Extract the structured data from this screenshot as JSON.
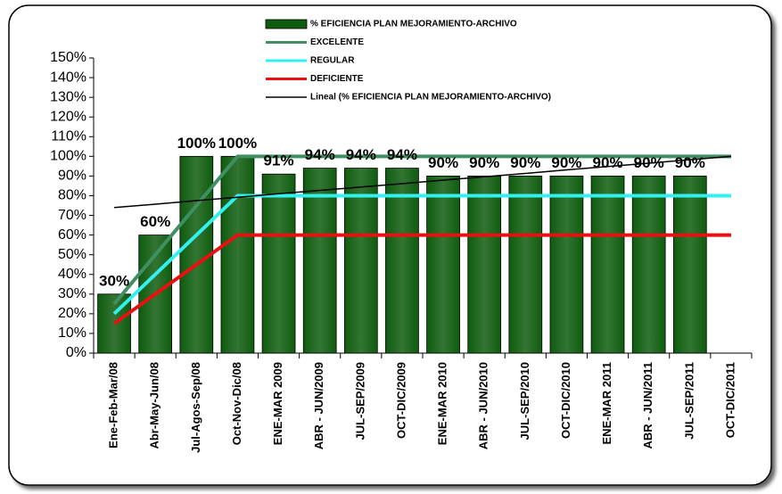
{
  "chart_data": {
    "type": "bar",
    "categories": [
      "Ene-Feb-Mar/08",
      "Abr-May-Jun/08",
      "Jul-Agos-Sep/08",
      "Oct-Nov-Dic/08",
      "ENE-MAR 2009",
      "ABR - JUN/2009",
      "JUL-SEP/2009",
      "OCT-DIC/2009",
      "ENE-MAR 2010",
      "ABR - JUN/2010",
      "JUL-SEP/2010",
      "OCT-DIC/2010",
      "ENE-MAR 2011",
      "ABR - JUN/2011",
      "JUL-SEP/2011",
      "OCT-DIC/2011"
    ],
    "series": [
      {
        "name": "% EFICIENCIA PLAN MEJORAMIENTO-ARCHIVO",
        "type": "bar",
        "color": "#0f5c0f",
        "values": [
          30,
          60,
          100,
          100,
          91,
          94,
          94,
          94,
          90,
          90,
          90,
          90,
          90,
          90,
          90,
          null
        ],
        "value_labels": [
          "30%",
          "60%",
          "100%",
          "100%",
          "91%",
          "94%",
          "94%",
          "94%",
          "90%",
          "90%",
          "90%",
          "90%",
          "90%",
          "90%",
          "90%",
          null
        ]
      },
      {
        "name": "EXCELENTE",
        "type": "line",
        "color": "#3f8f62",
        "values": [
          25,
          50,
          75,
          100,
          100,
          100,
          100,
          100,
          100,
          100,
          100,
          100,
          100,
          100,
          100,
          100
        ]
      },
      {
        "name": "REGULAR",
        "type": "line",
        "color": "#33f0f0",
        "values": [
          20,
          40,
          60,
          80,
          80,
          80,
          80,
          80,
          80,
          80,
          80,
          80,
          80,
          80,
          80,
          80
        ]
      },
      {
        "name": "DEFICIENTE",
        "type": "line",
        "color": "#e81010",
        "values": [
          15,
          30,
          45,
          60,
          60,
          60,
          60,
          60,
          60,
          60,
          60,
          60,
          60,
          60,
          60,
          60
        ]
      },
      {
        "name": "Lineal (% EFICIENCIA PLAN MEJORAMIENTO-ARCHIVO)",
        "type": "trend",
        "color": "#000000",
        "values": [
          74,
          75.7,
          77.5,
          79.2,
          81,
          82.7,
          84.4,
          86.1,
          87.9,
          89.6,
          91.3,
          93.1,
          94.8,
          96.5,
          98.3,
          100
        ]
      }
    ],
    "ylim": [
      0,
      150
    ],
    "yticks": [
      {
        "value": 0,
        "label": "0%"
      },
      {
        "value": 10,
        "label": "10%"
      },
      {
        "value": 20,
        "label": "20%"
      },
      {
        "value": 30,
        "label": "30%"
      },
      {
        "value": 40,
        "label": "40%"
      },
      {
        "value": 50,
        "label": "50%"
      },
      {
        "value": 60,
        "label": "60%"
      },
      {
        "value": 70,
        "label": "70%"
      },
      {
        "value": 80,
        "label": "80%"
      },
      {
        "value": 90,
        "label": "90%"
      },
      {
        "value": 100,
        "label": "100%"
      },
      {
        "value": 110,
        "label": "110%"
      },
      {
        "value": 120,
        "label": "120%"
      },
      {
        "value": 130,
        "label": "130%"
      },
      {
        "value": 140,
        "label": "140%"
      },
      {
        "value": 150,
        "label": "150%"
      }
    ],
    "grid": false
  }
}
